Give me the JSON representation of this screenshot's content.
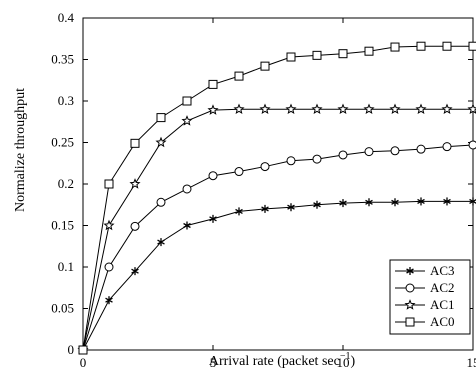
{
  "chart_data": {
    "type": "line",
    "title": "",
    "xlabel": "Arrival rate (packet sec",
    "xlabel_sup": "−1",
    "xlabel_close": ")",
    "ylabel": "Normalize throughput",
    "xlim": [
      0,
      15
    ],
    "ylim": [
      0,
      0.4
    ],
    "xticks": [
      0,
      5,
      10,
      15
    ],
    "xtick_labels": [
      "0",
      "5",
      "10",
      "15"
    ],
    "yticks": [
      0,
      0.05,
      0.1,
      0.15,
      0.2,
      0.25,
      0.3,
      0.35,
      0.4
    ],
    "ytick_labels": [
      "0",
      "0.05",
      "0.1",
      "0.15",
      "0.2",
      "0.25",
      "0.3",
      "0.35",
      "0.4"
    ],
    "grid": false,
    "legend_position": "bottom-right",
    "x": [
      0,
      1,
      2,
      3,
      4,
      5,
      6,
      7,
      8,
      9,
      10,
      11,
      12,
      13,
      14,
      15
    ],
    "series": [
      {
        "name": "AC3",
        "marker": "asterisk",
        "values": [
          0,
          0.06,
          0.095,
          0.13,
          0.15,
          0.158,
          0.167,
          0.17,
          0.172,
          0.175,
          0.177,
          0.178,
          0.178,
          0.179,
          0.179,
          0.179
        ]
      },
      {
        "name": "AC2",
        "marker": "circle",
        "values": [
          0,
          0.1,
          0.149,
          0.178,
          0.194,
          0.21,
          0.215,
          0.221,
          0.228,
          0.23,
          0.235,
          0.239,
          0.24,
          0.242,
          0.245,
          0.247
        ]
      },
      {
        "name": "AC1",
        "marker": "star",
        "values": [
          0,
          0.15,
          0.2,
          0.25,
          0.276,
          0.289,
          0.29,
          0.29,
          0.29,
          0.29,
          0.29,
          0.29,
          0.29,
          0.29,
          0.29,
          0.29
        ]
      },
      {
        "name": "AC0",
        "marker": "square",
        "values": [
          0,
          0.2,
          0.249,
          0.28,
          0.3,
          0.32,
          0.33,
          0.342,
          0.353,
          0.355,
          0.357,
          0.36,
          0.365,
          0.366,
          0.366,
          0.366
        ]
      }
    ]
  }
}
